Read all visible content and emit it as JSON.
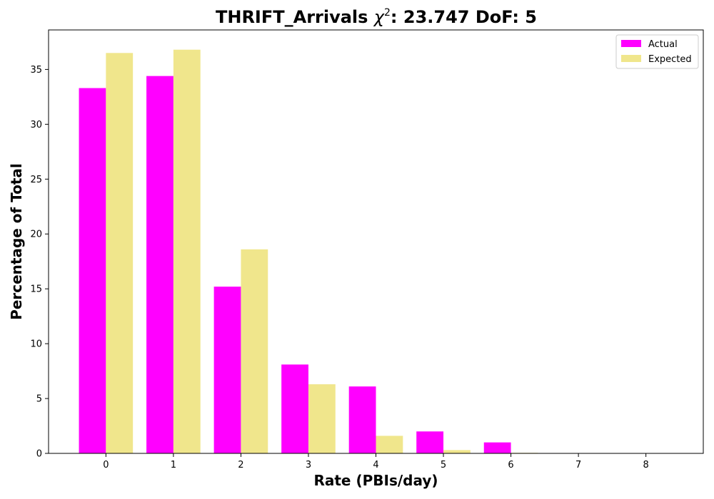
{
  "chart_data": {
    "type": "bar",
    "title": {
      "prefix": "THRIFT_Arrivals ",
      "chi_symbol": "χ",
      "chi_superscript": "2",
      "suffix": ": 23.747 DoF: 5"
    },
    "xlabel": "Rate (PBIs/day)",
    "ylabel": "Percentage of Total",
    "categories": [
      "0",
      "1",
      "2",
      "3",
      "4",
      "5",
      "6",
      "7",
      "8"
    ],
    "x": [
      0,
      1,
      2,
      3,
      4,
      5,
      6,
      7,
      8
    ],
    "xlim": [
      -0.85,
      8.85
    ],
    "ylim": [
      0,
      38.6
    ],
    "yticks": [
      0,
      5,
      10,
      15,
      20,
      25,
      30,
      35
    ],
    "series": [
      {
        "name": "Actual",
        "color": "#ff00ff",
        "values": [
          33.3,
          34.4,
          15.2,
          8.1,
          6.1,
          2.0,
          1.0,
          0.0,
          0.0
        ]
      },
      {
        "name": "Expected",
        "color": "#f0e68c",
        "values": [
          36.5,
          36.8,
          18.6,
          6.3,
          1.6,
          0.3,
          0.05,
          0.0,
          0.0
        ]
      }
    ],
    "legend_position": "top-right",
    "grid": false
  }
}
